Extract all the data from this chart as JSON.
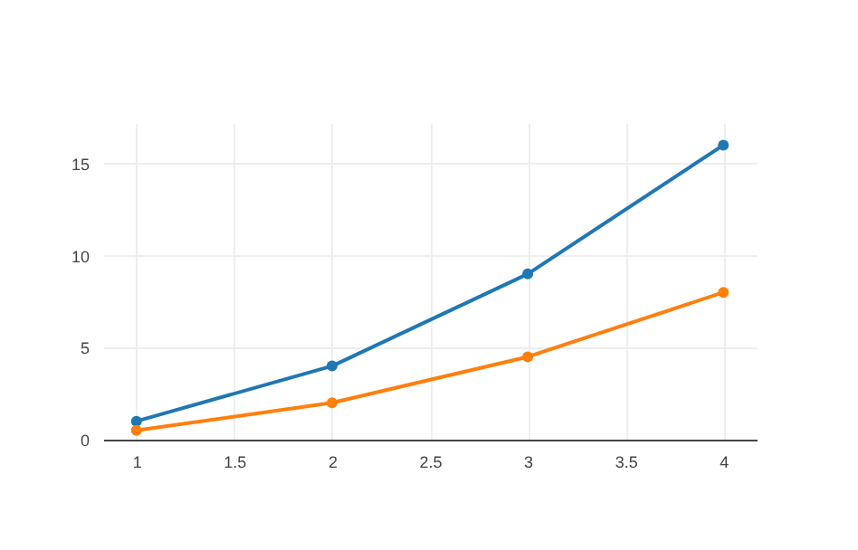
{
  "chart_data": {
    "type": "line",
    "x": [
      1,
      2,
      3,
      4
    ],
    "series": [
      {
        "color": "#1f77b4",
        "values": [
          1,
          4,
          9,
          16
        ]
      },
      {
        "color": "#ff7f0e",
        "values": [
          0.5,
          2,
          4.5,
          8
        ]
      }
    ],
    "xlim": [
      0.83,
      4.17
    ],
    "ylim": [
      0,
      17.2
    ],
    "xticks": [
      1,
      1.5,
      2,
      2.5,
      3,
      3.5,
      4
    ],
    "yticks": [
      0,
      5,
      10,
      15
    ],
    "grid": true,
    "marker": "circle",
    "line_style": "solid",
    "legend": false
  }
}
